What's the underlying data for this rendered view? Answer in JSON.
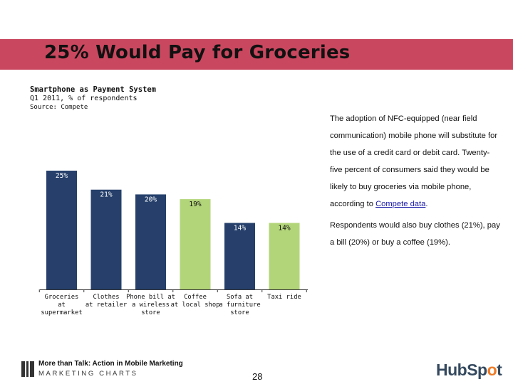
{
  "slide": {
    "title": "25% Would Pay for Groceries",
    "page_number": "28",
    "footer_title": "More than Talk: Action in Mobile Marketing",
    "footer_brand": "MARKETING CHARTS",
    "logo_text_pre": "HubSp",
    "logo_text_o": "o",
    "logo_text_post": "t",
    "banner_color": "#c9485f"
  },
  "description": {
    "paragraph1_pre": "The adoption of NFC-equipped (near field communication) mobile phone will substitute for the use of a credit card or debit card. Twenty-five percent of consumers said they would be likely to buy groceries via mobile phone, according to ",
    "paragraph1_link": "Compete data",
    "paragraph1_post": ".",
    "paragraph2": "Respondents would also buy clothes (21%), pay a bill (20%) or buy a coffee (19%)."
  },
  "chart_data": {
    "type": "bar",
    "title": "Smartphone as Payment System",
    "subtitle": "Q1 2011, % of respondents",
    "source": "Source: Compete",
    "categories": [
      "Groceries at supermarket",
      "Clothes at retailer",
      "Phone bill at a wireless store",
      "Coffee at local shop",
      "Sofa at a furniture store",
      "Taxi ride"
    ],
    "category_lines": [
      [
        "Groceries",
        "at",
        "supermarket"
      ],
      [
        "Clothes",
        "at retailer"
      ],
      [
        "Phone bill at",
        "a wireless",
        "store"
      ],
      [
        "Coffee",
        "at local shop"
      ],
      [
        "Sofa at",
        "a furniture",
        "store"
      ],
      [
        "Taxi ride"
      ]
    ],
    "values": [
      25,
      21,
      20,
      19,
      14,
      14
    ],
    "data_labels": [
      "25%",
      "21%",
      "20%",
      "19%",
      "14%",
      "14%"
    ],
    "bar_colors": [
      "#26406b",
      "#26406b",
      "#26406b",
      "#b3d57a",
      "#26406b",
      "#b3d57a"
    ],
    "ylim": [
      0,
      25
    ]
  }
}
